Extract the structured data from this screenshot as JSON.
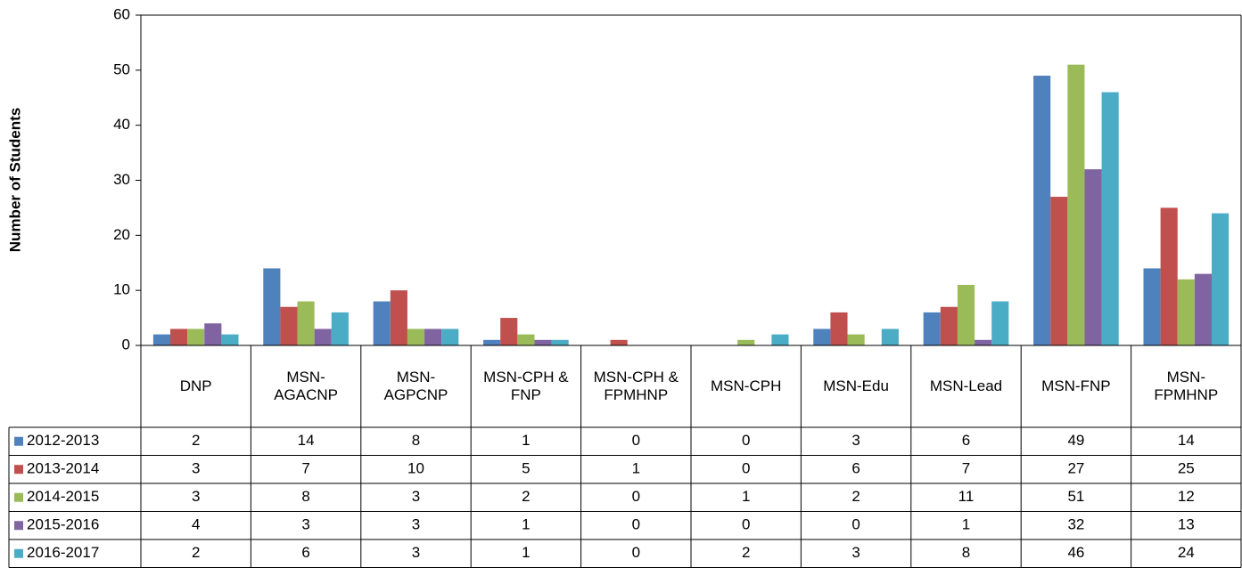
{
  "chart_data": {
    "type": "bar",
    "y_axis_label": "Number of Students",
    "categories": [
      "DNP",
      "MSN-AGACNP",
      "MSN-AGPCNP",
      "MSN-CPH & FNP",
      "MSN-CPH & FPMHNP",
      "MSN-CPH",
      "MSN-Edu",
      "MSN-Lead",
      "MSN-FNP",
      "MSN-FPMHNP"
    ],
    "series": [
      {
        "name": "2012-2013",
        "color": "#4f81bd",
        "values": [
          2,
          14,
          8,
          1,
          0,
          0,
          3,
          6,
          49,
          14
        ]
      },
      {
        "name": "2013-2014",
        "color": "#c0504d",
        "values": [
          3,
          7,
          10,
          5,
          1,
          0,
          6,
          7,
          27,
          25
        ]
      },
      {
        "name": "2014-2015",
        "color": "#9bbb59",
        "values": [
          3,
          8,
          3,
          2,
          0,
          1,
          2,
          11,
          51,
          12
        ]
      },
      {
        "name": "2015-2016",
        "color": "#8064a2",
        "values": [
          4,
          3,
          3,
          1,
          0,
          0,
          0,
          1,
          32,
          13
        ]
      },
      {
        "name": "2016-2017",
        "color": "#4bacc6",
        "values": [
          2,
          6,
          3,
          1,
          0,
          2,
          3,
          8,
          46,
          24
        ]
      }
    ],
    "ylim": [
      0,
      60
    ],
    "yticks": [
      0,
      10,
      20,
      30,
      40,
      50,
      60
    ],
    "grid": false,
    "legend": "table"
  }
}
